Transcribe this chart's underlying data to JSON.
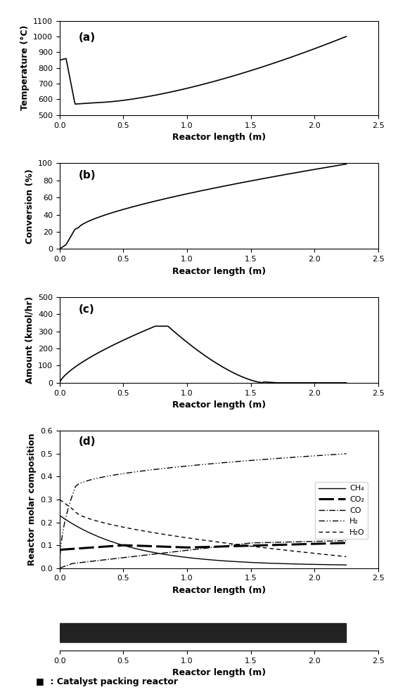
{
  "xlim": [
    0,
    2.5
  ],
  "xticks": [
    0.0,
    0.5,
    1.0,
    1.5,
    2.0,
    2.5
  ],
  "xlabel": "Reactor length (m)",
  "panel_a": {
    "label": "(a)",
    "ylabel": "Temperature (°C)",
    "ylim": [
      500,
      1100
    ],
    "yticks": [
      500,
      600,
      700,
      800,
      900,
      1000,
      1100
    ]
  },
  "panel_b": {
    "label": "(b)",
    "ylabel": "Conversion (%)",
    "ylim": [
      0,
      100
    ],
    "yticks": [
      0,
      20,
      40,
      60,
      80,
      100
    ]
  },
  "panel_c": {
    "label": "(c)",
    "ylabel": "Amount (kmol/hr)",
    "ylim": [
      0,
      500
    ],
    "yticks": [
      0,
      100,
      200,
      300,
      400,
      500
    ]
  },
  "panel_d": {
    "label": "(d)",
    "ylabel": "Reactor molar composition",
    "ylim": [
      0,
      0.6
    ],
    "yticks": [
      0.0,
      0.1,
      0.2,
      0.3,
      0.4,
      0.5,
      0.6
    ],
    "legend_entries": [
      "CH₄",
      "CO₂",
      "CO",
      "H₂",
      "H₂O"
    ]
  },
  "catalyst_bar": {
    "x_start": 0.0,
    "x_end": 2.25,
    "color": "#222222",
    "label": ": Catalyst packing reactor"
  },
  "background_color": "#ffffff",
  "line_color": "#000000"
}
